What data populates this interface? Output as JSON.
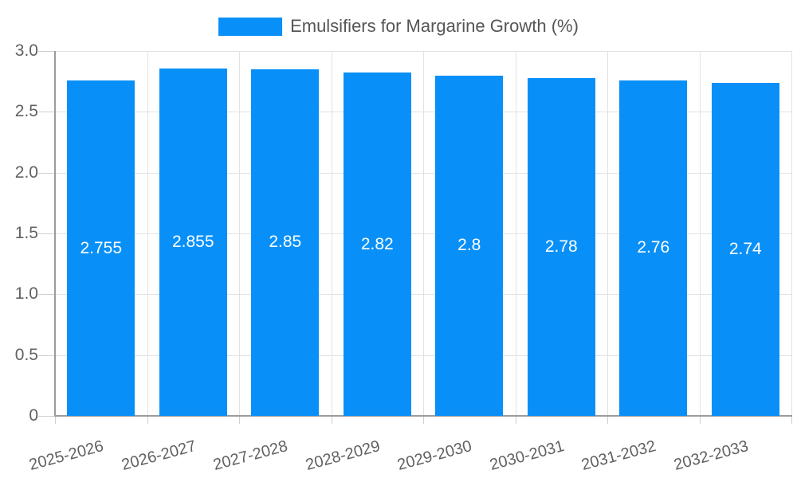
{
  "legend": {
    "label": "Emulsifiers for Margarine Growth (%)"
  },
  "chart_data": {
    "type": "bar",
    "title": "Emulsifiers for Margarine Growth (%)",
    "categories": [
      "2025-2026",
      "2026-2027",
      "2027-2028",
      "2028-2029",
      "2029-2030",
      "2030-2031",
      "2031-2032",
      "2032-2033"
    ],
    "values": [
      2.755,
      2.855,
      2.85,
      2.82,
      2.8,
      2.78,
      2.76,
      2.74
    ],
    "bar_labels": [
      "2.755",
      "2.855",
      "2.85",
      "2.82",
      "2.8",
      "2.78",
      "2.76",
      "2.74"
    ],
    "xlabel": "",
    "ylabel": "",
    "ylim": [
      0,
      3
    ],
    "yticks": [
      0,
      0.5,
      1,
      1.5,
      2,
      2.5,
      3
    ],
    "ytick_labels": [
      "0",
      "0.5",
      "1.0",
      "1.5",
      "2.0",
      "2.5",
      "3.0"
    ],
    "grid": true,
    "legend_position": "top-center"
  },
  "colors": {
    "bar": "#0990F8",
    "bar_label": "#FFFFFF",
    "grid": "#E2E2E2",
    "tick": "#CFCFCF",
    "axis": "#9C9C9C",
    "axis_text": "#616161",
    "legend_text": "#555555",
    "background": "#FFFFFF"
  }
}
